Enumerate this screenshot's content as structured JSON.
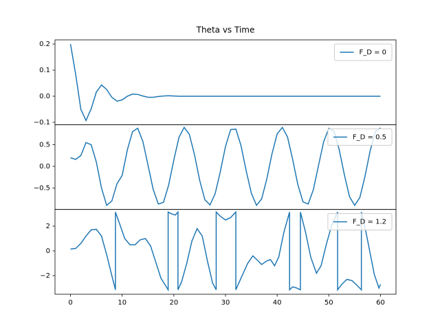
{
  "chart_data": [
    {
      "type": "line",
      "title": "Theta vs Time",
      "legend": "upper right",
      "x": [
        0,
        1,
        2,
        3,
        4,
        5,
        6,
        7,
        8,
        9,
        10,
        11,
        12,
        13,
        14,
        15,
        16,
        17,
        18,
        19,
        20,
        21,
        22,
        23,
        24,
        25,
        26,
        27,
        28,
        29,
        30,
        31,
        32,
        33,
        34,
        35,
        36,
        37,
        38,
        39,
        40,
        41,
        42,
        43,
        44,
        45,
        46,
        47,
        48,
        49,
        50,
        51,
        52,
        53,
        54,
        55,
        56,
        57,
        58,
        59,
        60
      ],
      "series": [
        {
          "name": "F_D = 0",
          "color": "#1f77b4",
          "values": [
            0.2,
            0.084,
            -0.05,
            -0.093,
            -0.048,
            0.016,
            0.043,
            0.026,
            -0.004,
            -0.019,
            -0.014,
            0,
            0.008,
            0.007,
            0.001,
            -0.004,
            -0.004,
            -0.001,
            0.001,
            0.002,
            0.001,
            0,
            0,
            0,
            0,
            0,
            0,
            0,
            0,
            0,
            0,
            0,
            0,
            0,
            0,
            0,
            0,
            0,
            0,
            0,
            0,
            0,
            0,
            0,
            0,
            0,
            0,
            0,
            0,
            0,
            0,
            0,
            0,
            0,
            0,
            0,
            0,
            0,
            0,
            0,
            0
          ]
        }
      ],
      "xlim": [
        -3,
        63
      ],
      "ylim": [
        -0.109,
        0.216
      ],
      "yticks": [
        {
          "value": -0.1,
          "label": "−0.1"
        },
        {
          "value": 0,
          "label": "0.0"
        },
        0.1,
        0.2
      ]
    },
    {
      "type": "line",
      "legend": "upper right",
      "x": [
        0,
        1,
        2,
        3,
        4,
        5,
        6,
        7,
        8,
        9,
        10,
        11,
        12,
        13,
        14,
        15,
        16,
        17,
        18,
        19,
        20,
        21,
        22,
        23,
        24,
        25,
        26,
        27,
        28,
        29,
        30,
        31,
        32,
        33,
        34,
        35,
        36,
        37,
        38,
        39,
        40,
        41,
        42,
        43,
        44,
        45,
        46,
        47,
        48,
        49,
        50,
        51,
        52,
        53,
        54,
        55,
        56,
        57,
        58,
        59,
        60
      ],
      "series": [
        {
          "name": "F_D = 0.5",
          "color": "#1f77b4",
          "values": [
            0.2,
            0.16,
            0.25,
            0.55,
            0.5,
            0.1,
            -0.5,
            -0.9,
            -0.8,
            -0.4,
            -0.21,
            0.38,
            0.8,
            0.88,
            0.58,
            0.03,
            -0.53,
            -0.87,
            -0.83,
            -0.43,
            0.15,
            0.67,
            0.9,
            0.74,
            0.27,
            -0.32,
            -0.77,
            -0.89,
            -0.63,
            -0.12,
            0.46,
            0.85,
            0.86,
            0.48,
            -0.1,
            -0.62,
            -0.9,
            -0.75,
            -0.29,
            0.29,
            0.75,
            0.9,
            0.68,
            0.16,
            -0.42,
            -0.82,
            -0.87,
            -0.54,
            0.02,
            0.57,
            0.88,
            0.81,
            0.39,
            -0.19,
            -0.7,
            -0.9,
            -0.72,
            -0.23,
            0.36,
            0.8,
            0.89
          ]
        }
      ],
      "xlim": [
        -3,
        63
      ],
      "ylim": [
        -0.995,
        0.963
      ],
      "yticks": [
        {
          "value": -0.5,
          "label": "−0.5"
        },
        {
          "value": 0,
          "label": "0.0"
        },
        0.5
      ]
    },
    {
      "type": "line",
      "legend": "upper right",
      "x": [
        0,
        1,
        2,
        3,
        4,
        5,
        6,
        7,
        8,
        8.7,
        8.7,
        9.5,
        10.5,
        11.5,
        12.5,
        13.5,
        14.5,
        15.5,
        16.5,
        17.5,
        18.9,
        18.9,
        19.5,
        20.3,
        20.8,
        20.8,
        21.5,
        22.5,
        23.5,
        24.5,
        25.5,
        26.5,
        27.5,
        28.2,
        28.2,
        29,
        30,
        31,
        32,
        32,
        33,
        34.3,
        35.3,
        36.3,
        37,
        38,
        38.7,
        39.5,
        40.3,
        41.3,
        42.4,
        42.4,
        43,
        43.8,
        44.5,
        44.5,
        45.5,
        46.5,
        47.6,
        48.5,
        49.5,
        50.5,
        51.7,
        51.7,
        52.5,
        53.5,
        54.5,
        55.5,
        56.3,
        56.3,
        57.2,
        58,
        58.8,
        59.7,
        60
      ],
      "series": [
        {
          "name": "F_D = 1.2",
          "color": "#1f77b4",
          "values": [
            0.15,
            0.2,
            0.6,
            1.2,
            1.7,
            1.75,
            1.2,
            -0.3,
            -2.0,
            -3.14,
            3.14,
            2.2,
            1.0,
            0.5,
            0.5,
            0.9,
            1.0,
            0.4,
            -0.9,
            -2.2,
            -3.14,
            3.14,
            3.0,
            2.9,
            3.14,
            -3.14,
            -2.5,
            -1.0,
            0.8,
            1.8,
            1.2,
            -0.8,
            -2.6,
            -3.14,
            3.14,
            2.8,
            2.5,
            2.7,
            3.14,
            -3.14,
            -2.2,
            -1.0,
            -0.4,
            -0.8,
            -1.1,
            -0.8,
            -0.7,
            -1.2,
            -0.5,
            1.5,
            3.14,
            -3.14,
            -2.9,
            -3.0,
            -3.14,
            3.14,
            1.5,
            -0.5,
            -1.8,
            -1.2,
            0.5,
            2.0,
            3.14,
            -3.14,
            -2.7,
            -2.3,
            -2.4,
            -2.8,
            -3.14,
            3.14,
            1.5,
            -0.2,
            -1.9,
            -3.0,
            -2.7
          ]
        }
      ],
      "xlim": [
        -3,
        63
      ],
      "ylim": [
        -3.5,
        3.35
      ],
      "yticks": [
        {
          "value": -2,
          "label": "−2"
        },
        0,
        2
      ],
      "xticks": [
        0,
        10,
        20,
        30,
        40,
        50,
        60
      ]
    }
  ]
}
